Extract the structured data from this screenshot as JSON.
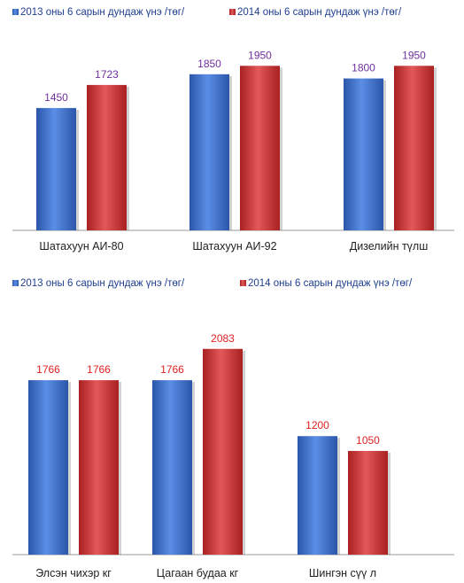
{
  "chart_data": [
    {
      "type": "bar",
      "title": "",
      "xlabel": "",
      "ylabel": "",
      "categories": [
        "Шатахуун АИ-80",
        "Шатахуун АИ-92",
        "Дизелийн түлш"
      ],
      "series": [
        {
          "name": "2013 оны 6 сарын дундаж үнэ /төг/",
          "values": [
            1450,
            1850,
            1800
          ],
          "color": "#3a6fd0"
        },
        {
          "name": "2014 оны 6 сарын дундаж үнэ /төг/",
          "values": [
            1723,
            1950,
            1950
          ],
          "color": "#d23a3a"
        }
      ],
      "ylim": [
        0,
        2100
      ],
      "grid": false,
      "legend": "top-left",
      "value_label_color": "#7030a0"
    },
    {
      "type": "bar",
      "title": "",
      "xlabel": "",
      "ylabel": "",
      "categories": [
        "Элсэн чихэр кг",
        "Цагаан будаа кг",
        "Шингэн сүү  л"
      ],
      "series": [
        {
          "name": "2013 оны 6 сарын дундаж үнэ /төг/",
          "values": [
            1766,
            1766,
            1200
          ],
          "color": "#3a6fd0"
        },
        {
          "name": "2014 оны 6 сарын дундаж үнэ /төг/",
          "values": [
            1766,
            2083,
            1050
          ],
          "color": "#d23a3a"
        }
      ],
      "ylim": [
        0,
        2350
      ],
      "grid": false,
      "legend": "top-left",
      "value_label_color": "#e02020"
    }
  ]
}
